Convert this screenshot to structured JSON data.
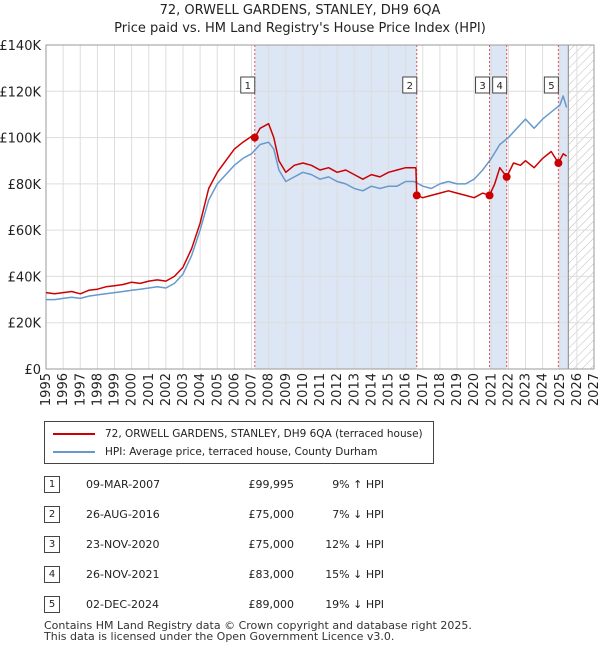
{
  "title_line1": "72, ORWELL GARDENS, STANLEY, DH9 6QA",
  "title_line2": "Price paid vs. HM Land Registry's House Price Index (HPI)",
  "legend": {
    "property_label": "72, ORWELL GARDENS, STANLEY, DH9 6QA (terraced house)",
    "hpi_label": "HPI: Average price, terraced house, County Durham"
  },
  "sales": [
    {
      "num": "1",
      "date": "09-MAR-2007",
      "price": "£99,995",
      "hpi_change": "9% ↑ HPI"
    },
    {
      "num": "2",
      "date": "26-AUG-2016",
      "price": "£75,000",
      "hpi_change": "7% ↓ HPI"
    },
    {
      "num": "3",
      "date": "23-NOV-2020",
      "price": "£75,000",
      "hpi_change": "12% ↓ HPI"
    },
    {
      "num": "4",
      "date": "26-NOV-2021",
      "price": "£83,000",
      "hpi_change": "15% ↓ HPI"
    },
    {
      "num": "5",
      "date": "02-DEC-2024",
      "price": "£89,000",
      "hpi_change": "19% ↓ HPI"
    }
  ],
  "footer_line1": "Contains HM Land Registry data © Crown copyright and database right 2025.",
  "footer_line2": "This data is licensed under the Open Government Licence v3.0.",
  "colors": {
    "property_line": "#cc0000",
    "hpi_line": "#6699cc",
    "shade": "#dde6f5",
    "marker_line": "#dd5555",
    "hatch": "#bbbbbb"
  },
  "chart_data": {
    "type": "line",
    "title": "72, ORWELL GARDENS, STANLEY, DH9 6QA — Price paid vs. HM Land Registry's House Price Index (HPI)",
    "xlabel": "",
    "ylabel": "",
    "xlim": [
      1995,
      2027
    ],
    "ylim": [
      0,
      140000
    ],
    "x_ticks": [
      1995,
      1996,
      1997,
      1998,
      1999,
      2000,
      2001,
      2002,
      2003,
      2004,
      2005,
      2006,
      2007,
      2008,
      2009,
      2010,
      2011,
      2012,
      2013,
      2014,
      2015,
      2016,
      2017,
      2018,
      2019,
      2020,
      2021,
      2022,
      2023,
      2024,
      2025,
      2026,
      2027
    ],
    "y_ticks": [
      0,
      20000,
      40000,
      60000,
      80000,
      100000,
      120000,
      140000
    ],
    "y_tick_labels": [
      "£0",
      "£20K",
      "£40K",
      "£60K",
      "£80K",
      "£100K",
      "£120K",
      "£140K"
    ],
    "grid": true,
    "forecast_start": 2025.5,
    "shaded_ranges": [
      [
        2007.19,
        2016.65
      ],
      [
        2020.9,
        2021.9
      ],
      [
        2024.92,
        2025.5
      ]
    ],
    "series": [
      {
        "name": "72, ORWELL GARDENS, STANLEY, DH9 6QA (terraced house)",
        "x": [
          1995.0,
          1995.5,
          1996.0,
          1996.5,
          1997.0,
          1997.5,
          1998.0,
          1998.5,
          1999.0,
          1999.5,
          2000.0,
          2000.5,
          2001.0,
          2001.5,
          2002.0,
          2002.5,
          2003.0,
          2003.5,
          2004.0,
          2004.5,
          2005.0,
          2005.5,
          2006.0,
          2006.5,
          2007.0,
          2007.19,
          2007.5,
          2008.0,
          2008.3,
          2008.6,
          2009.0,
          2009.5,
          2010.0,
          2010.5,
          2011.0,
          2011.5,
          2012.0,
          2012.5,
          2013.0,
          2013.5,
          2014.0,
          2014.5,
          2015.0,
          2015.5,
          2016.0,
          2016.6,
          2016.65,
          2017.0,
          2017.5,
          2018.0,
          2018.5,
          2019.0,
          2019.5,
          2020.0,
          2020.5,
          2020.9,
          2021.2,
          2021.5,
          2021.9,
          2022.3,
          2022.7,
          2023.0,
          2023.5,
          2024.0,
          2024.5,
          2024.92,
          2025.2,
          2025.4
        ],
        "values": [
          33000,
          32500,
          33000,
          33500,
          32500,
          34000,
          34500,
          35500,
          36000,
          36500,
          37500,
          37000,
          38000,
          38500,
          38000,
          40000,
          44000,
          52000,
          63000,
          78000,
          85000,
          90000,
          95000,
          98000,
          100500,
          99995,
          104000,
          106000,
          100000,
          90000,
          85000,
          88000,
          89000,
          88000,
          86000,
          87000,
          85000,
          86000,
          84000,
          82000,
          84000,
          83000,
          85000,
          86000,
          87000,
          87000,
          75000,
          74000,
          75000,
          76000,
          77000,
          76000,
          75000,
          74000,
          76000,
          75000,
          80000,
          87000,
          83000,
          89000,
          88000,
          90000,
          87000,
          91000,
          94000,
          89000,
          93000,
          92000
        ]
      },
      {
        "name": "HPI: Average price, terraced house, County Durham",
        "x": [
          1995.0,
          1995.5,
          1996.0,
          1996.5,
          1997.0,
          1997.5,
          1998.0,
          1998.5,
          1999.0,
          1999.5,
          2000.0,
          2000.5,
          2001.0,
          2001.5,
          2002.0,
          2002.5,
          2003.0,
          2003.5,
          2004.0,
          2004.5,
          2005.0,
          2005.5,
          2006.0,
          2006.5,
          2007.0,
          2007.5,
          2008.0,
          2008.3,
          2008.6,
          2009.0,
          2009.5,
          2010.0,
          2010.5,
          2011.0,
          2011.5,
          2012.0,
          2012.5,
          2013.0,
          2013.5,
          2014.0,
          2014.5,
          2015.0,
          2015.5,
          2016.0,
          2016.5,
          2017.0,
          2017.5,
          2018.0,
          2018.5,
          2019.0,
          2019.5,
          2020.0,
          2020.5,
          2021.0,
          2021.5,
          2022.0,
          2022.5,
          2023.0,
          2023.5,
          2024.0,
          2024.5,
          2025.0,
          2025.2,
          2025.4
        ],
        "values": [
          30000,
          30000,
          30500,
          31000,
          30500,
          31500,
          32000,
          32500,
          33000,
          33500,
          34000,
          34500,
          35000,
          35500,
          35000,
          37000,
          41000,
          49000,
          60000,
          73000,
          80000,
          84000,
          88000,
          91000,
          93000,
          97000,
          98000,
          95000,
          86000,
          81000,
          83000,
          85000,
          84000,
          82000,
          83000,
          81000,
          80000,
          78000,
          77000,
          79000,
          78000,
          79000,
          79000,
          81000,
          81000,
          79000,
          78000,
          80000,
          81000,
          80000,
          80000,
          82000,
          86000,
          91000,
          97000,
          100000,
          104000,
          108000,
          104000,
          108000,
          111000,
          114000,
          118000,
          113000
        ]
      }
    ],
    "sale_points": [
      {
        "label": "1",
        "x": 2007.19,
        "value": 99995
      },
      {
        "label": "2",
        "x": 2016.65,
        "value": 75000
      },
      {
        "label": "3",
        "x": 2020.9,
        "value": 75000
      },
      {
        "label": "4",
        "x": 2021.9,
        "value": 83000
      },
      {
        "label": "5",
        "x": 2024.92,
        "value": 89000
      }
    ]
  }
}
